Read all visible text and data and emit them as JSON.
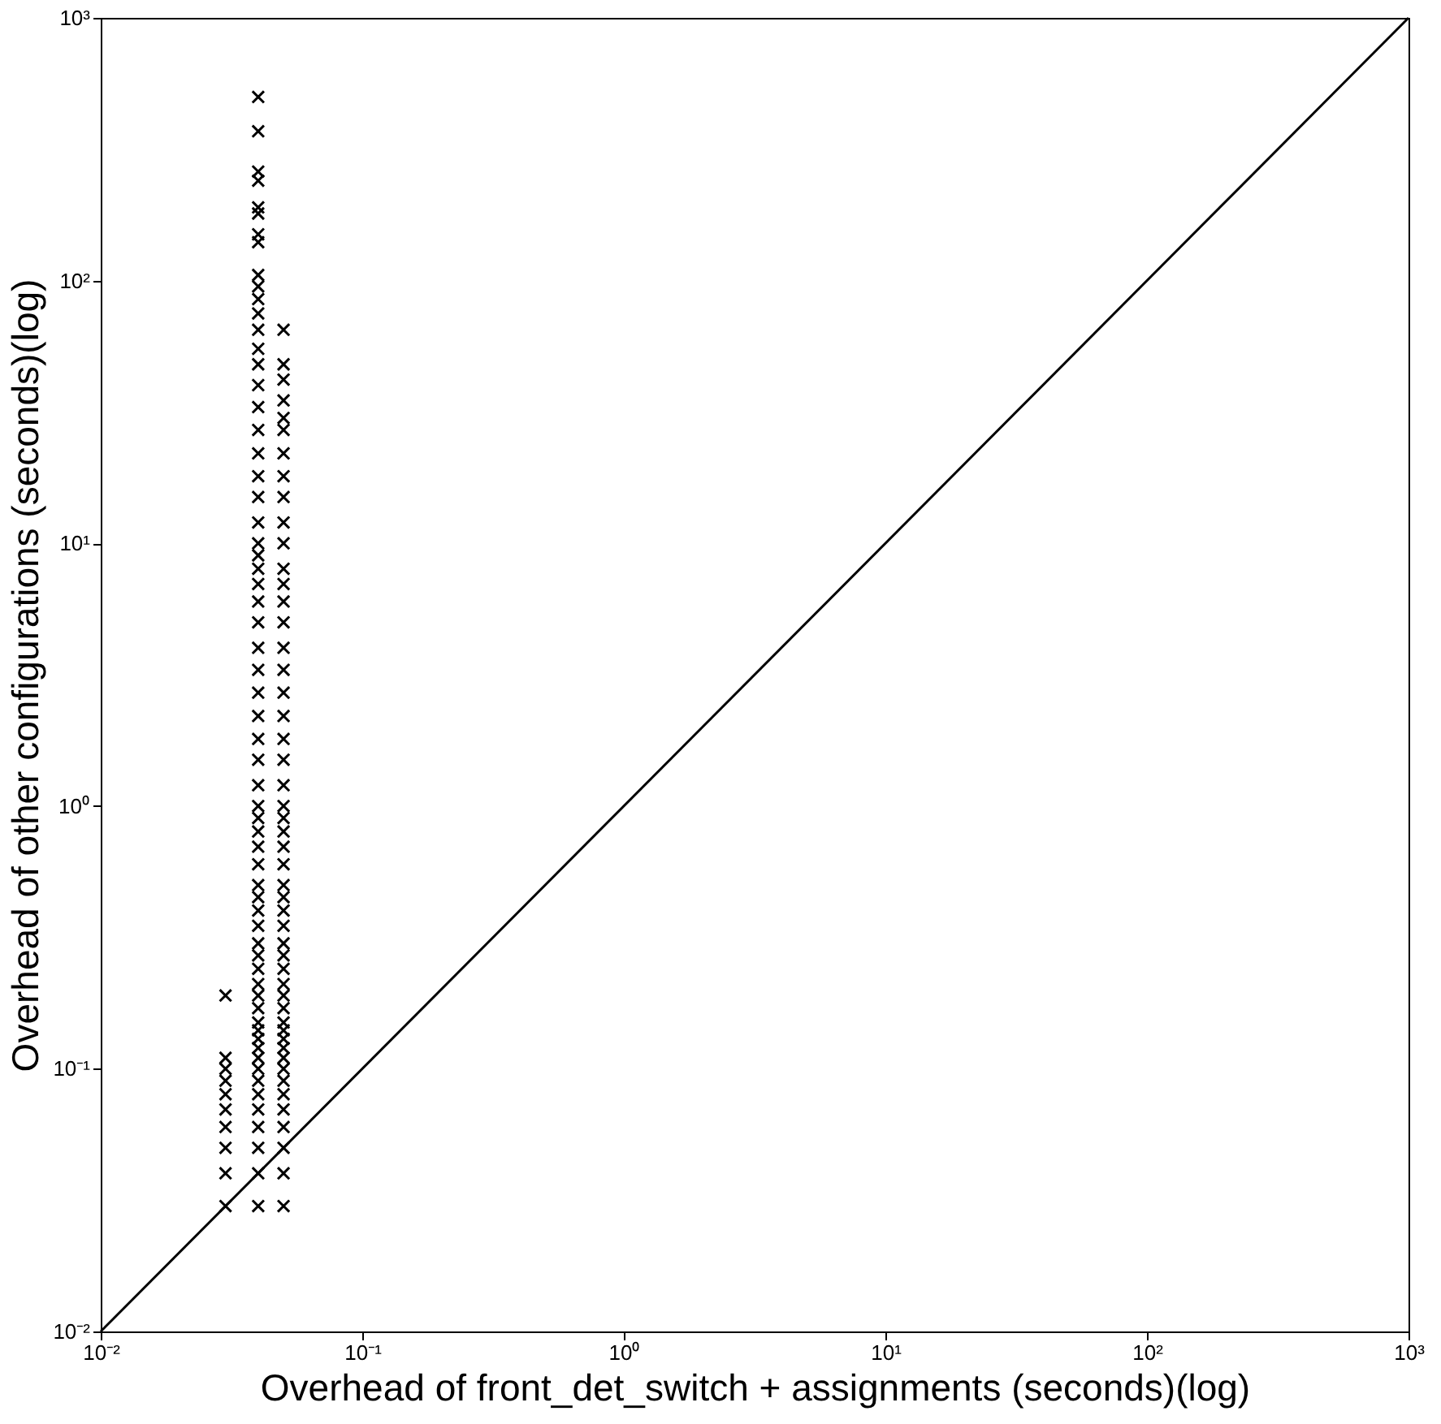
{
  "chart_data": {
    "type": "scatter",
    "xlabel": "Overhead of front_det_switch + assignments (seconds)(log)",
    "ylabel": "Overhead of other configurations (seconds)(log)",
    "log": "xy",
    "grid": false,
    "marker": "cross",
    "xlim": [
      0.01,
      1000
    ],
    "ylim": [
      0.01,
      1000
    ],
    "xticks": [
      {
        "value": 0.01,
        "label": "10⁻²"
      },
      {
        "value": 0.1,
        "label": "10⁻¹"
      },
      {
        "value": 1,
        "label": "10⁰"
      },
      {
        "value": 10,
        "label": "10¹"
      },
      {
        "value": 100,
        "label": "10²"
      },
      {
        "value": 1000,
        "label": "10³"
      }
    ],
    "yticks": [
      {
        "value": 0.01,
        "label": "10⁻²"
      },
      {
        "value": 0.1,
        "label": "10⁻¹"
      },
      {
        "value": 1,
        "label": "10⁰"
      },
      {
        "value": 10,
        "label": "10¹"
      },
      {
        "value": 100,
        "label": "10²"
      },
      {
        "value": 1000,
        "label": "10³"
      }
    ],
    "series": [
      {
        "color": "#000000",
        "x": [
          0.03,
          0.03,
          0.03,
          0.03,
          0.03,
          0.03,
          0.03,
          0.03,
          0.03,
          0.03
        ],
        "values": [
          0.03,
          0.04,
          0.05,
          0.06,
          0.07,
          0.08,
          0.09,
          0.1,
          0.11,
          0.19
        ]
      },
      {
        "color": "#000000",
        "x": [
          0.04,
          0.04,
          0.04,
          0.04,
          0.04,
          0.04,
          0.04,
          0.04,
          0.04,
          0.04,
          0.04,
          0.04,
          0.04,
          0.04,
          0.04,
          0.04,
          0.04,
          0.04,
          0.04,
          0.04,
          0.04,
          0.04,
          0.04,
          0.04,
          0.04,
          0.04,
          0.04,
          0.04,
          0.04,
          0.04,
          0.04,
          0.04,
          0.04,
          0.04,
          0.04,
          0.04,
          0.04,
          0.04,
          0.04,
          0.04,
          0.04,
          0.04,
          0.04,
          0.04,
          0.04,
          0.04,
          0.04,
          0.04,
          0.04,
          0.04,
          0.04,
          0.04,
          0.04,
          0.04,
          0.04,
          0.04,
          0.04,
          0.04,
          0.04,
          0.04,
          0.04,
          0.04,
          0.04
        ],
        "values": [
          0.03,
          0.04,
          0.05,
          0.06,
          0.07,
          0.08,
          0.09,
          0.1,
          0.11,
          0.12,
          0.13,
          0.14,
          0.15,
          0.17,
          0.19,
          0.21,
          0.24,
          0.27,
          0.3,
          0.35,
          0.4,
          0.45,
          0.5,
          0.6,
          0.7,
          0.8,
          0.9,
          1,
          1.2,
          1.5,
          1.8,
          2.2,
          2.7,
          3.3,
          4,
          5,
          6,
          7,
          8,
          9,
          10,
          12,
          15,
          18,
          22,
          27,
          33,
          40,
          48,
          55,
          65,
          75,
          85,
          95,
          105,
          140,
          150,
          180,
          190,
          240,
          260,
          370,
          500
        ]
      },
      {
        "color": "#000000",
        "x": [
          0.05,
          0.05,
          0.05,
          0.05,
          0.05,
          0.05,
          0.05,
          0.05,
          0.05,
          0.05,
          0.05,
          0.05,
          0.05,
          0.05,
          0.05,
          0.05,
          0.05,
          0.05,
          0.05,
          0.05,
          0.05,
          0.05,
          0.05,
          0.05,
          0.05,
          0.05,
          0.05,
          0.05,
          0.05,
          0.05,
          0.05,
          0.05,
          0.05,
          0.05,
          0.05,
          0.05,
          0.05,
          0.05,
          0.05,
          0.05,
          0.05,
          0.05,
          0.05,
          0.05,
          0.05,
          0.05,
          0.05,
          0.05,
          0.05,
          0.05
        ],
        "values": [
          0.03,
          0.04,
          0.05,
          0.06,
          0.07,
          0.08,
          0.09,
          0.1,
          0.11,
          0.12,
          0.13,
          0.14,
          0.15,
          0.17,
          0.19,
          0.21,
          0.24,
          0.27,
          0.3,
          0.35,
          0.4,
          0.45,
          0.5,
          0.6,
          0.7,
          0.8,
          0.9,
          1,
          1.2,
          1.5,
          1.8,
          2.2,
          2.7,
          3.3,
          4,
          5,
          6,
          7,
          8,
          10,
          12,
          15,
          18,
          22,
          27,
          30,
          35,
          42,
          48,
          65
        ]
      },
      {
        "type": "line",
        "color": "#000000",
        "marker": "none",
        "x": [
          0.01,
          1000
        ],
        "values": [
          0.01,
          1000
        ]
      }
    ]
  }
}
